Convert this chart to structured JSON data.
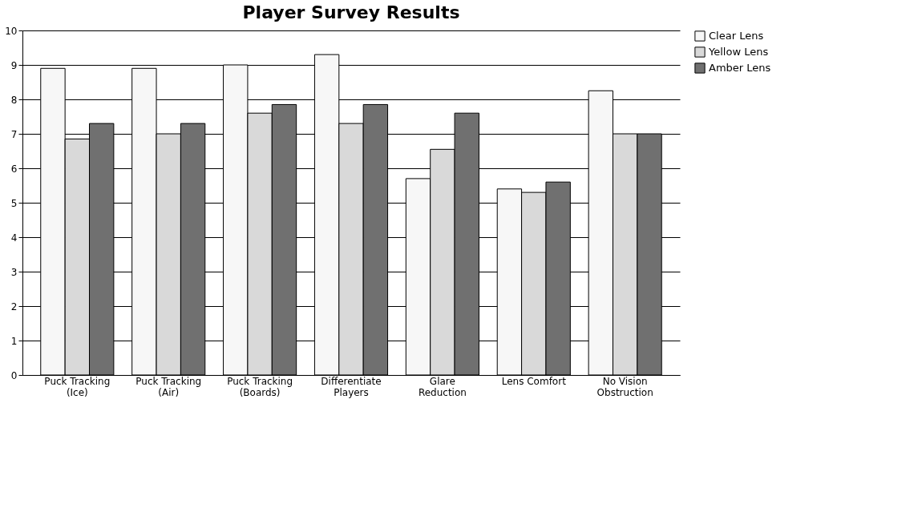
{
  "chart_data": {
    "type": "bar",
    "title": "Player Survey Results",
    "categories": [
      "Puck Tracking\n(Ice)",
      "Puck Tracking\n(Air)",
      "Puck Tracking\n(Boards)",
      "Differentiate\nPlayers",
      "Glare\nReduction",
      "Lens Comfort",
      "No Vision\nObstruction"
    ],
    "series": [
      {
        "name": "Clear Lens",
        "color": "#f7f7f7",
        "values": [
          8.9,
          8.9,
          9.0,
          9.3,
          5.7,
          5.4,
          8.25
        ]
      },
      {
        "name": "Yellow Lens",
        "color": "#d9d9d9",
        "values": [
          6.85,
          7.0,
          7.6,
          7.3,
          6.55,
          5.3,
          7.0
        ]
      },
      {
        "name": "Amber Lens",
        "color": "#707070",
        "values": [
          7.3,
          7.3,
          7.85,
          7.85,
          7.6,
          5.6,
          7.0
        ]
      }
    ],
    "ylim": [
      0,
      10
    ],
    "yticks": [
      0,
      1,
      2,
      3,
      4,
      5,
      6,
      7,
      8,
      9,
      10
    ],
    "grid": "y",
    "legend": "right"
  }
}
